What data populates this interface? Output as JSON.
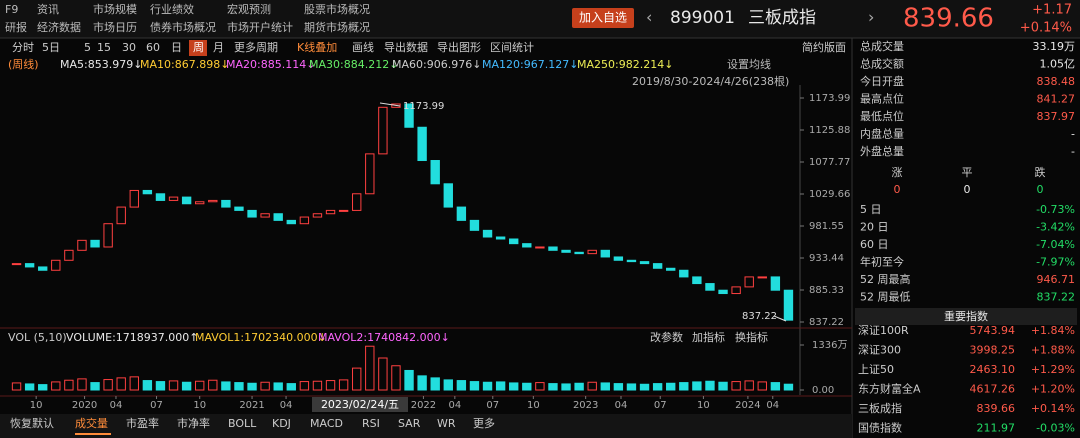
{
  "menu": {
    "rows": [
      [
        "F9",
        "资讯",
        "市场规模",
        "行业绩效",
        "宏观预测",
        "股票市场概况"
      ],
      [
        "研报",
        "经济数据",
        "市场日历",
        "债券市场概况",
        "市场开户统计",
        "期货市场概况"
      ]
    ]
  },
  "header": {
    "button": "加入自选",
    "code": "899001",
    "name": "三板成指",
    "price": "839.66",
    "change": "+1.17",
    "change_pct": "+0.14%"
  },
  "toolbar": {
    "items": [
      "分时",
      "5日",
      "5",
      "15",
      "30",
      "60",
      "日",
      "周",
      "月",
      "更多周期",
      "K线叠加",
      "画线",
      "导出数据",
      "导出图形",
      "区间统计"
    ],
    "active": 7,
    "right": "简约版面"
  },
  "ma_row": {
    "period": "(周线)",
    "items": [
      {
        "text": "MA5:853.979↓",
        "color": "#e8e8e8"
      },
      {
        "text": "MA10:867.898↓",
        "color": "#ffcc33"
      },
      {
        "text": "MA20:885.114↓",
        "color": "#ff66ff"
      },
      {
        "text": "MA30:884.212↓",
        "color": "#66ee66"
      },
      {
        "text": "MA60:906.976↓",
        "color": "#cccccc"
      },
      {
        "text": "MA120:967.127↓",
        "color": "#44bbff"
      },
      {
        "text": "MA250:982.214↓",
        "color": "#eeee55"
      }
    ]
  },
  "settings_label": "设置均线",
  "range_label": "2019/8/30-2024/4/26(238根)",
  "chart_data": {
    "type": "candlestick",
    "up_color": "#ff4040",
    "down_color": "#22dddd",
    "values": [
      925,
      920,
      915,
      930,
      945,
      960,
      950,
      985,
      1010,
      1035,
      1030,
      1020,
      1025,
      1015,
      1018,
      1020,
      1010,
      1005,
      995,
      1000,
      990,
      985,
      995,
      1000,
      1005,
      1005,
      1030,
      1090,
      1160,
      1165,
      1130,
      1080,
      1045,
      1010,
      990,
      975,
      965,
      962,
      955,
      950,
      950,
      945,
      942,
      940,
      945,
      935,
      930,
      928,
      925,
      918,
      915,
      905,
      895,
      885,
      880,
      890,
      905,
      905,
      885,
      840
    ],
    "ylim": [
      837.22,
      1173.99
    ],
    "yticks": [
      1173.99,
      1125.88,
      1077.77,
      1029.66,
      981.55,
      933.44,
      885.33,
      837.22
    ],
    "annotations": [
      "1173.99",
      "837.22"
    ],
    "xticks": [
      {
        "value": 1.5,
        "label": "10"
      },
      {
        "value": 5.2,
        "label": "2020"
      },
      {
        "value": 7.6,
        "label": "04"
      },
      {
        "value": 10.7,
        "label": "07"
      },
      {
        "value": 14.0,
        "label": "10"
      },
      {
        "value": 18.0,
        "label": "2021"
      },
      {
        "value": 20.6,
        "label": "04"
      },
      {
        "value": 31.1,
        "label": "2022"
      },
      {
        "value": 33.5,
        "label": "04"
      },
      {
        "value": 36.4,
        "label": "07"
      },
      {
        "value": 39.5,
        "label": "10"
      },
      {
        "value": 43.5,
        "label": "2023"
      },
      {
        "value": 46.2,
        "label": "04"
      },
      {
        "value": 49.2,
        "label": "07"
      },
      {
        "value": 52.5,
        "label": "10"
      },
      {
        "value": 55.9,
        "label": "2024"
      },
      {
        "value": 57.8,
        "label": "04"
      }
    ],
    "crosshair_label": "2023/02/24/五"
  },
  "volume": {
    "title": "VOL (5,10)",
    "items": [
      {
        "text": "VOLUME:1718937.000↑",
        "color": "#e8e8e8"
      },
      {
        "text": "MAVOL1:1702340.000↓",
        "color": "#ffcc33"
      },
      {
        "text": "MAVOL2:1740842.000↓",
        "color": "#ff66ff"
      }
    ],
    "buttons": [
      "改参数",
      "加指标",
      "换指标"
    ],
    "values": [
      2100000,
      1800000,
      1600000,
      2400000,
      2900000,
      3300000,
      2200000,
      3100000,
      3600000,
      3900000,
      2800000,
      2500000,
      2700000,
      2300000,
      2600000,
      2900000,
      2400000,
      2200000,
      2000000,
      2300000,
      2100000,
      1900000,
      2500000,
      2600000,
      2800000,
      3000000,
      6500000,
      13000000,
      9500000,
      7200000,
      5800000,
      4200000,
      3600000,
      3000000,
      2800000,
      2500000,
      2300000,
      2400000,
      2100000,
      2000000,
      2200000,
      1900000,
      1800000,
      2000000,
      2300000,
      2100000,
      1900000,
      1800000,
      1700000,
      1900000,
      2000000,
      2200000,
      2400000,
      2600000,
      2300000,
      2500000,
      2700000,
      2400000,
      2200000,
      1718937
    ],
    "ylim": [
      0,
      13360000
    ],
    "yticks": [
      {
        "value": 13360000,
        "label": "1336万"
      },
      {
        "value": 0,
        "label": "0.00"
      }
    ]
  },
  "tabs": {
    "items": [
      "恢复默认",
      "成交量",
      "市盈率",
      "市净率",
      "BOLL",
      "KDJ",
      "MACD",
      "RSI",
      "SAR",
      "WR",
      "更多"
    ],
    "active": 1
  },
  "stats": [
    {
      "label": "总成交量",
      "value": "33.19万",
      "color": "#e8e8e8"
    },
    {
      "label": "总成交额",
      "value": "1.05亿",
      "color": "#e8e8e8"
    },
    {
      "label": "今日开盘",
      "value": "838.48",
      "color": "#ff5a4a"
    },
    {
      "label": "最高点位",
      "value": "841.27",
      "color": "#ff5a4a"
    },
    {
      "label": "最低点位",
      "value": "837.97",
      "color": "#ff5a4a"
    },
    {
      "label": "内盘总量",
      "value": "-",
      "color": "#e8e8e8"
    },
    {
      "label": "外盘总量",
      "value": "-",
      "color": "#e8e8e8"
    }
  ],
  "updown": {
    "headers": [
      "涨",
      "平",
      "跌"
    ],
    "values": [
      "0",
      "0",
      "0"
    ],
    "colors": [
      "#ff5a4a",
      "#e8e8e8",
      "#22dd66"
    ]
  },
  "perf": [
    {
      "label": "5 日",
      "value": "-0.73%",
      "color": "#22dd66"
    },
    {
      "label": "20 日",
      "value": "-3.42%",
      "color": "#22dd66"
    },
    {
      "label": "60 日",
      "value": "-7.04%",
      "color": "#22dd66"
    },
    {
      "label": "年初至今",
      "value": "-7.97%",
      "color": "#22dd66"
    },
    {
      "label": "52 周最高",
      "value": "946.71",
      "color": "#ff5a4a"
    },
    {
      "label": "52 周最低",
      "value": "837.22",
      "color": "#22dd66"
    }
  ],
  "index_header": "重要指数",
  "indices": [
    {
      "name": "深证100R",
      "value": "5743.94",
      "pct": "+1.84%",
      "color": "#ff5a4a"
    },
    {
      "name": "深证300",
      "value": "3998.25",
      "pct": "+1.88%",
      "color": "#ff5a4a"
    },
    {
      "name": "上证50",
      "value": "2463.10",
      "pct": "+1.29%",
      "color": "#ff5a4a"
    },
    {
      "name": "东方财富全A",
      "value": "4617.26",
      "pct": "+1.20%",
      "color": "#ff5a4a"
    },
    {
      "name": "三板成指",
      "value": "839.66",
      "pct": "+0.14%",
      "color": "#ff5a4a"
    },
    {
      "name": "国债指数",
      "value": "211.97",
      "pct": "-0.03%",
      "color": "#22dd66"
    }
  ]
}
